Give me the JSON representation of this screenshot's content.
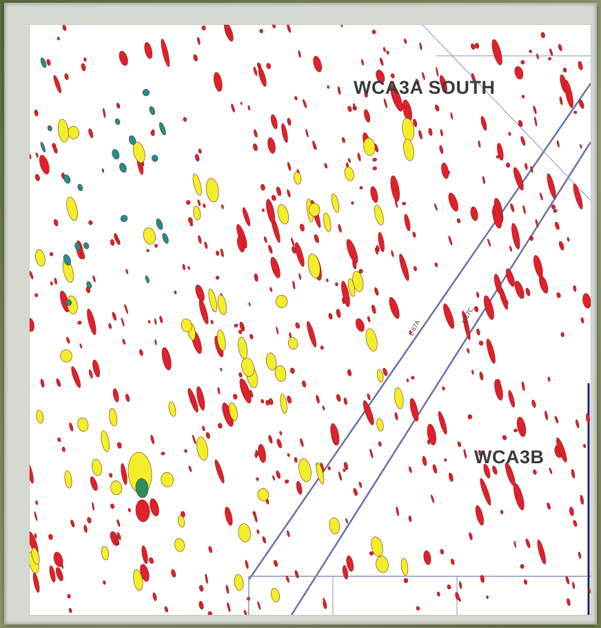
{
  "map": {
    "labels": {
      "north_area": "WCA3A SOUTH",
      "south_area": "WCA3B",
      "canal_a": "L-67A",
      "canal_c": "L-67C"
    },
    "colors": {
      "background": "#ffffff",
      "boundary_line": "#6b6fa8",
      "tree_island_red": "#e0202a",
      "tree_island_yellow": "#f2ee2a",
      "tree_island_green": "#2a8f5a",
      "tree_island_teal": "#1f8f8a"
    }
  }
}
